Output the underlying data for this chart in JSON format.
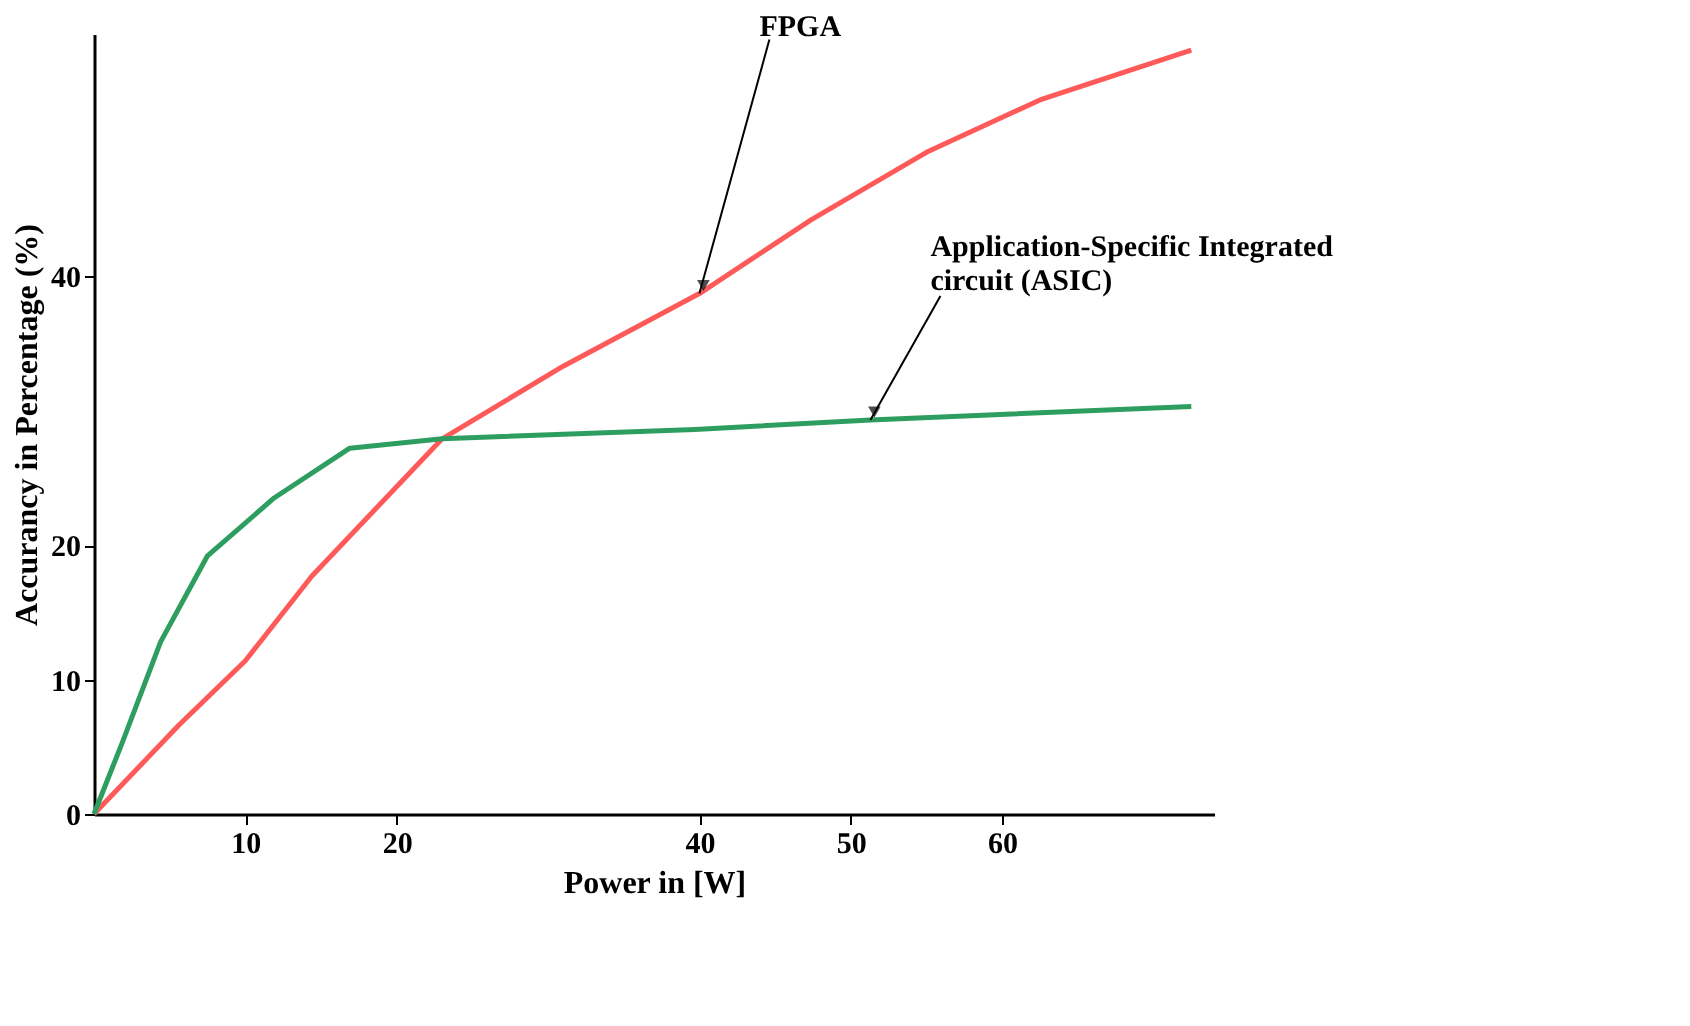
{
  "chart_data": {
    "type": "line",
    "xlabel": "Power in [W]",
    "ylabel": "Accurancy in Percentage (%)",
    "xlim": [
      0,
      74
    ],
    "ylim": [
      0,
      58
    ],
    "xticks": [
      10,
      20,
      40,
      50,
      60
    ],
    "yticks": [
      0,
      10,
      20,
      40
    ],
    "grid": false,
    "legend": false,
    "marker": "none",
    "line_style": "solid",
    "series": [
      {
        "color": "#ff5a5a",
        "x": [
          0,
          5.6,
          10,
          14.4,
          23,
          31,
          40,
          47.4,
          55,
          62.5,
          72.5
        ],
        "values": [
          0,
          6.6,
          11.4,
          17.7,
          27.9,
          33.3,
          38.7,
          44.2,
          49.2,
          53.1,
          56.8
        ]
      },
      {
        "color": "#2e9e60",
        "x": [
          0,
          1.9,
          4.4,
          7.5,
          11.9,
          16.9,
          23,
          39.7,
          51.3,
          72.5
        ],
        "values": [
          0,
          5.4,
          12.8,
          19.2,
          23.5,
          27.2,
          27.9,
          28.6,
          29.3,
          30.3
        ]
      }
    ],
    "annotations": [
      {
        "text": "FPGA",
        "x": 40,
        "y": 38.7
      },
      {
        "text": "Application-Specific Integrated\ncircuit (ASIC)",
        "x": 51.3,
        "y": 29.3
      }
    ]
  }
}
